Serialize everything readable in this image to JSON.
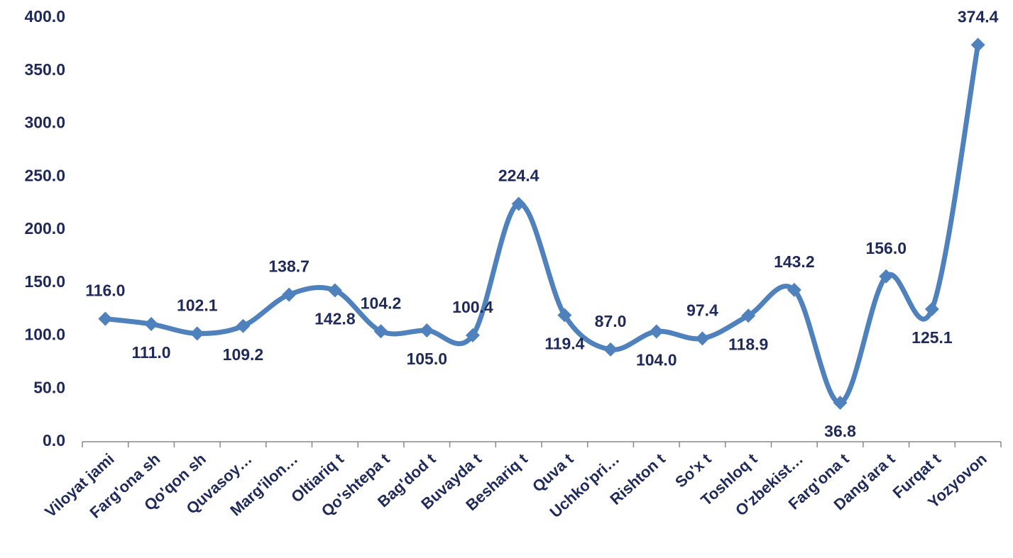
{
  "chart_data": {
    "type": "line",
    "categories": [
      "Viloyat jami",
      "Farg'ona sh",
      "Qo'qon sh",
      "Quvasoy…",
      "Marg'ilon…",
      "Oltiariq  t",
      "Qo'shtepa t",
      "Bag'dod t",
      "Buvayda t",
      "Beshariq t",
      "Quva t",
      "Uchko'pri…",
      "Rishton t",
      "So'x t",
      "Toshloq t",
      "O'zbekist…",
      "Farg'ona t",
      "Dang'ara t",
      "Furqat t",
      "Yozyovon"
    ],
    "series": [
      {
        "name": "Series 1",
        "color": "#4f81bd",
        "values": [
          116.0,
          111.0,
          102.1,
          109.2,
          138.7,
          142.8,
          104.2,
          105.0,
          100.4,
          224.4,
          119.4,
          87.0,
          104.0,
          97.4,
          118.9,
          143.2,
          36.8,
          156.0,
          125.1,
          374.4
        ],
        "value_labels": [
          "116.0",
          "111.0",
          "102.1",
          "109.2",
          "138.7",
          "142.8",
          "104.2",
          "105.0",
          "100.4",
          "224.4",
          "119.4",
          "87.0",
          "104.0",
          "97.4",
          "118.9",
          "143.2",
          "36.8",
          "156.0",
          "125.1",
          "374.4"
        ]
      }
    ],
    "ylim": [
      0,
      400
    ],
    "yticks": [
      {
        "value": 0,
        "label": "0.0"
      },
      {
        "value": 50,
        "label": "50.0"
      },
      {
        "value": 100,
        "label": "100.0"
      },
      {
        "value": 150,
        "label": "150.0"
      },
      {
        "value": 200,
        "label": "200.0"
      },
      {
        "value": 250,
        "label": "250.0"
      },
      {
        "value": 300,
        "label": "300.0"
      },
      {
        "value": 350,
        "label": "350.0"
      },
      {
        "value": 400,
        "label": "400.0"
      }
    ],
    "grid": false
  }
}
